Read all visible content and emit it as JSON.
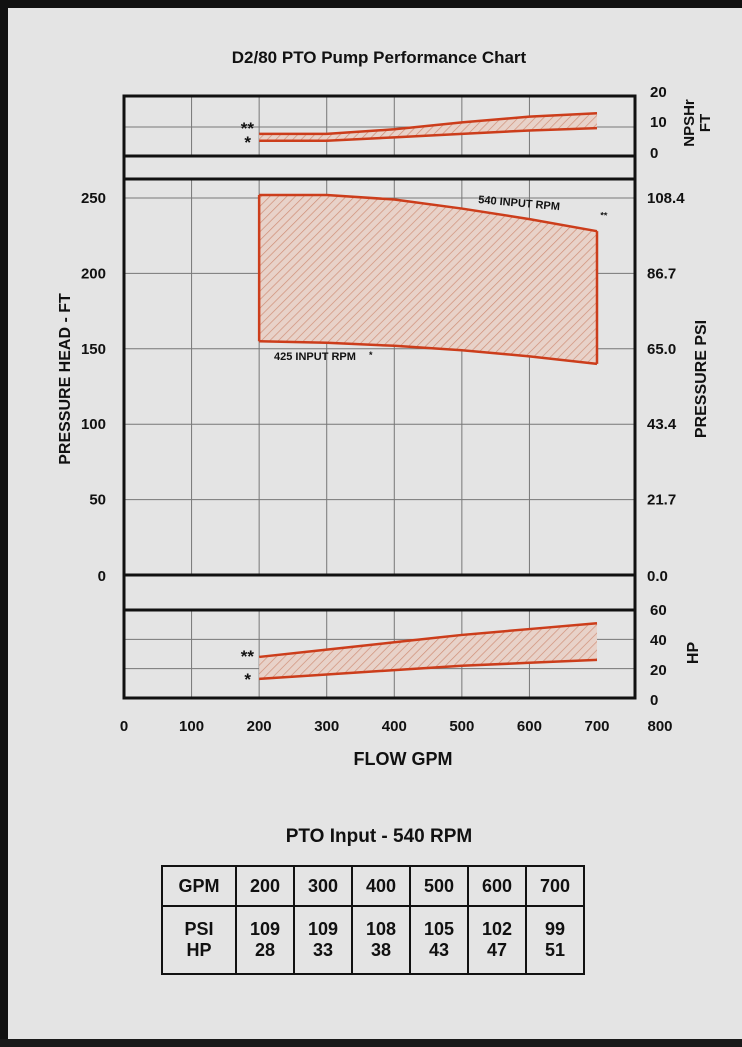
{
  "chart_data": {
    "type": "area",
    "title": "D2/80 PTO Pump Performance Chart",
    "xlabel": "FLOW GPM",
    "xlim": [
      0,
      800
    ],
    "xticks": [
      "0",
      "100",
      "200",
      "300",
      "400",
      "500",
      "600",
      "700",
      "800"
    ],
    "grid": true,
    "panels": {
      "npsh": {
        "ylabel": "NPSHr FT",
        "ylim": [
          0,
          20
        ],
        "yticks": [
          "20",
          "10",
          "0"
        ],
        "series": [
          {
            "marker": "**",
            "x": [
              200,
              300,
              400,
              500,
              600,
              700
            ],
            "y": [
              7,
              7,
              9,
              12,
              14.5,
              16
            ]
          },
          {
            "marker": "*",
            "x": [
              200,
              300,
              400,
              500,
              600,
              700
            ],
            "y": [
              4,
              4,
              5.5,
              7,
              8.5,
              9.5
            ]
          }
        ]
      },
      "pressure": {
        "ylabel": "PRESSURE HEAD - FT",
        "ylabel_right": "PRESSURE PSI",
        "ylim": [
          0,
          260
        ],
        "yticks_left": [
          "250",
          "200",
          "150",
          "100",
          "50",
          "0"
        ],
        "yticks_right": [
          "108.4",
          "86.7",
          "65.0",
          "43.4",
          "21.7",
          "0.0"
        ],
        "series": [
          {
            "name": "540 INPUT RPM",
            "marker": "**",
            "x": [
              200,
              300,
              400,
              500,
              600,
              700
            ],
            "y": [
              252,
              252,
              249,
              243,
              236,
              228
            ]
          },
          {
            "name": "425 INPUT RPM",
            "marker": "*",
            "x": [
              200,
              300,
              400,
              500,
              600,
              700
            ],
            "y": [
              155,
              154,
              152,
              149,
              145,
              140
            ]
          }
        ]
      },
      "hp": {
        "ylabel": "HP",
        "ylim": [
          0,
          60
        ],
        "yticks": [
          "60",
          "40",
          "20",
          "0"
        ],
        "series": [
          {
            "marker": "**",
            "x": [
              200,
              300,
              400,
              500,
              600,
              700
            ],
            "y": [
              28,
              33,
              38,
              43,
              47,
              51
            ]
          },
          {
            "marker": "*",
            "x": [
              200,
              300,
              400,
              500,
              600,
              700
            ],
            "y": [
              13,
              16,
              19,
              22,
              24,
              26
            ]
          }
        ]
      }
    }
  },
  "table": {
    "title": "PTO Input - 540 RPM",
    "header": [
      "GPM",
      "200",
      "300",
      "400",
      "500",
      "600",
      "700"
    ],
    "psi_label": "PSI",
    "hp_label": "HP",
    "psi": [
      "109",
      "109",
      "108",
      "105",
      "102",
      "99"
    ],
    "hp": [
      "28",
      "33",
      "38",
      "43",
      "47",
      "51"
    ]
  },
  "colors": {
    "curve": "#cc3d1b",
    "fill_hatch": "#d9a08e",
    "background": "#e4e4e4",
    "axis": "#111111",
    "grid": "#777777"
  }
}
